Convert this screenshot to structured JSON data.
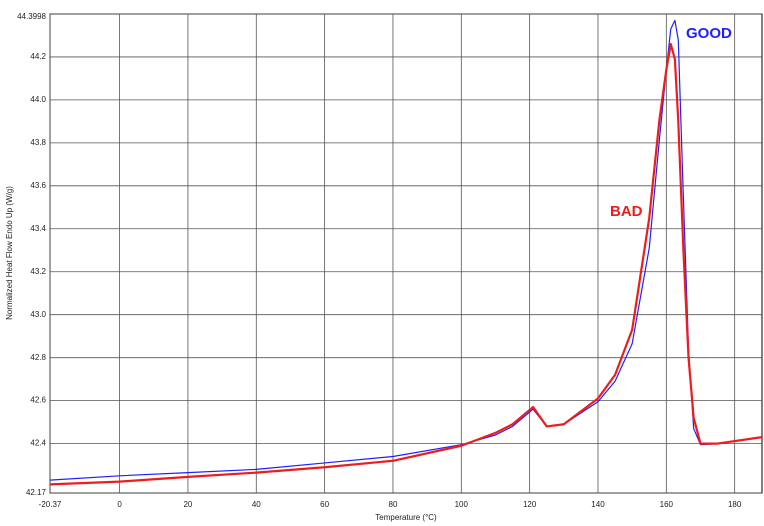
{
  "chart_data": {
    "type": "line",
    "x_label": "Temperature (°C)",
    "y_label": "Normalized Heat Flow Endo Up (W/g)",
    "xlim": [
      -20.37,
      188
    ],
    "xticks": [
      -20.37,
      0,
      20,
      40,
      60,
      80,
      100,
      120,
      140,
      160,
      180
    ],
    "ylim": [
      42.17,
      44.3998
    ],
    "yticks": [
      42.17,
      42.4,
      42.6,
      42.8,
      {
        "value": 43.0,
        "label": "43.0"
      },
      43.2,
      43.4,
      43.6,
      43.8,
      {
        "value": 44.0,
        "label": "44.0"
      },
      44.2,
      44.3998
    ],
    "grid": true,
    "x": [
      -20.37,
      0,
      20,
      40,
      60,
      80,
      100,
      110,
      115,
      121,
      125,
      130,
      140,
      145,
      150,
      155,
      158,
      160,
      161.3,
      162.5,
      163.5,
      165,
      166.5,
      168,
      170,
      175,
      188
    ],
    "series": [
      {
        "color": "#1f1fff",
        "values": [
          42.23,
          42.25,
          42.265,
          42.28,
          42.31,
          42.34,
          42.395,
          42.44,
          42.48,
          42.56,
          42.48,
          42.49,
          42.595,
          42.69,
          42.865,
          43.31,
          43.82,
          44.14,
          44.33,
          44.37,
          44.28,
          43.54,
          42.84,
          42.47,
          42.395,
          42.4,
          42.43
        ]
      },
      {
        "color": "#ee1c1c",
        "values": [
          42.21,
          42.223,
          42.245,
          42.265,
          42.29,
          42.32,
          42.39,
          42.45,
          42.49,
          42.57,
          42.48,
          42.49,
          42.61,
          42.72,
          42.93,
          43.45,
          43.91,
          44.14,
          44.26,
          44.19,
          43.9,
          43.3,
          42.8,
          42.52,
          42.4,
          42.4,
          42.43
        ]
      }
    ],
    "annotations": [
      "GOOD",
      "BAD"
    ]
  }
}
